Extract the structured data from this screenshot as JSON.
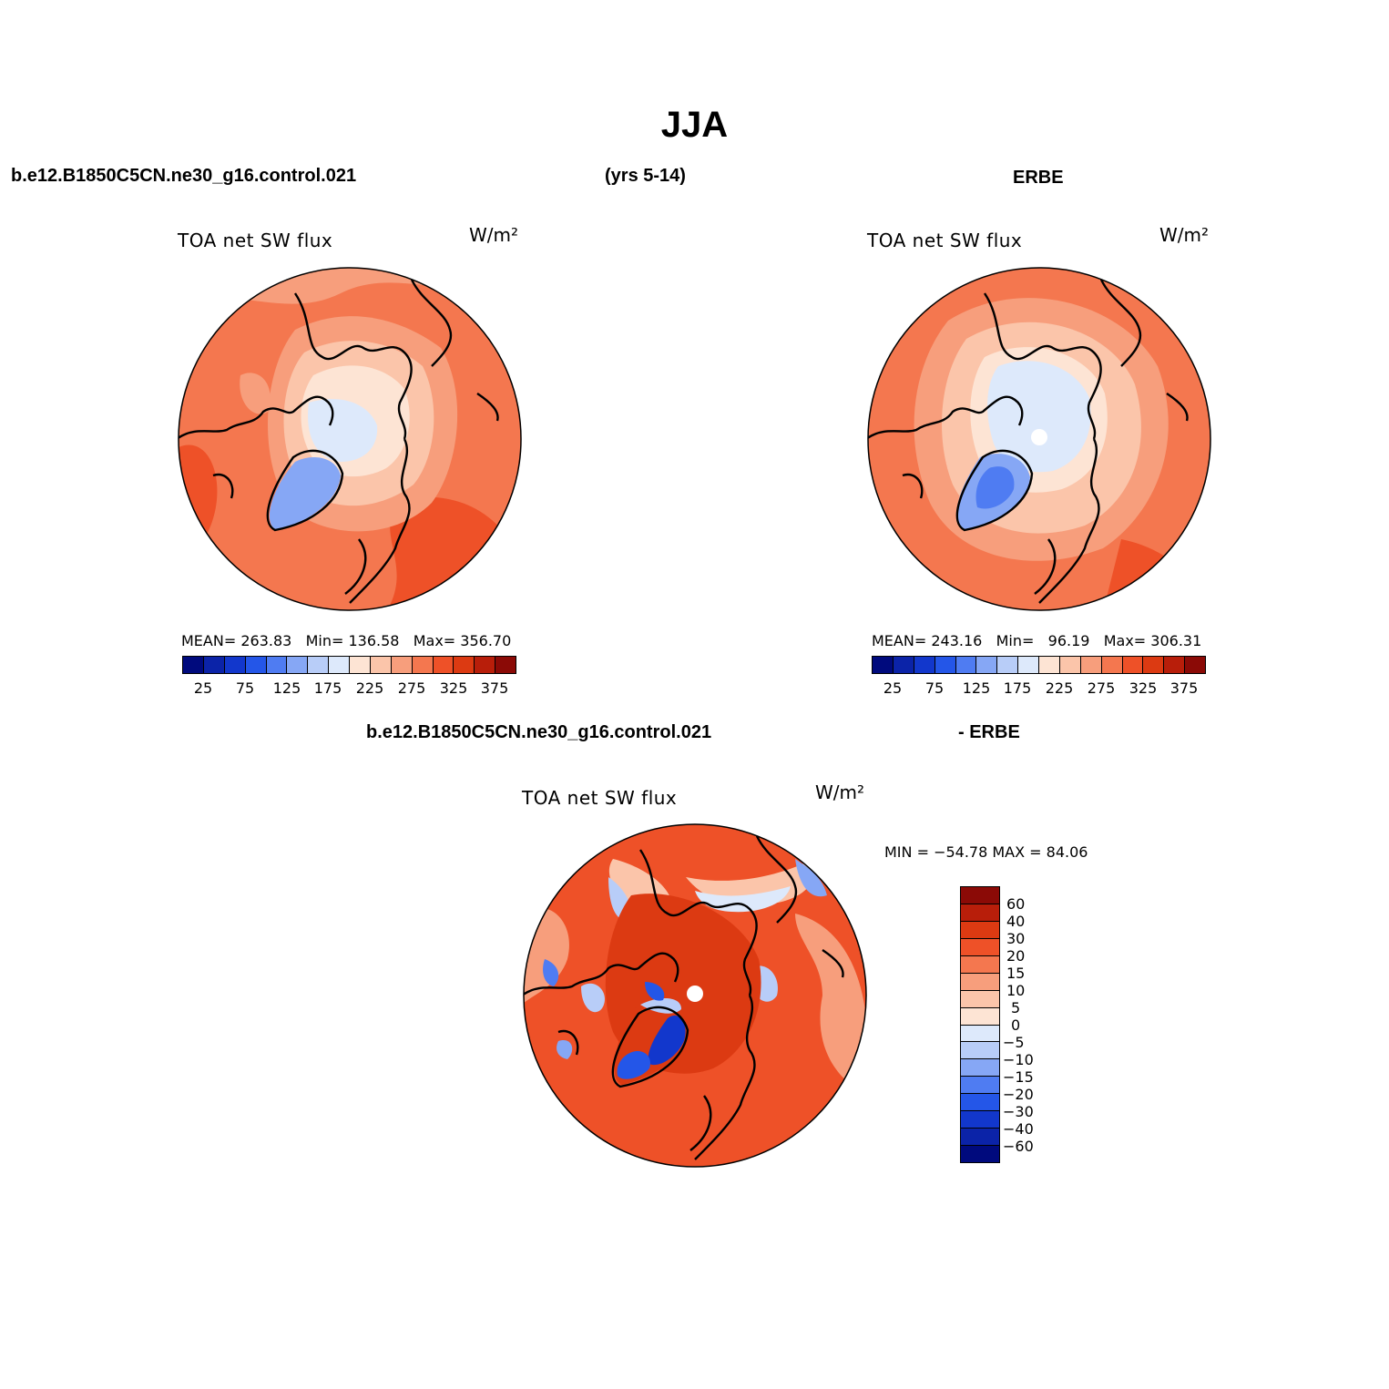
{
  "title": "JJA",
  "header_top": {
    "left": "b.e12.B1850C5CN.ne30_g16.control.021",
    "middle": "(yrs 5-14)",
    "right": "ERBE"
  },
  "header_bottom": {
    "left": "b.e12.B1850C5CN.ne30_g16.control.021",
    "right": "- ERBE"
  },
  "palette_abs": [
    "#000a7d",
    "#0b23a8",
    "#1237cc",
    "#2456e8",
    "#4f7cf2",
    "#86a7f5",
    "#b8cdf8",
    "#dde9fb",
    "#fde4d4",
    "#fbc5aa",
    "#f79e7c",
    "#f4774f",
    "#ee5128",
    "#dc3a12",
    "#b81e0a",
    "#8b0a06"
  ],
  "palette_diff": [
    "#8b0a06",
    "#b81e0a",
    "#dc3a12",
    "#ee5128",
    "#f4774f",
    "#f79e7c",
    "#fbc5aa",
    "#fde4d4",
    "#dde9fb",
    "#b8cdf8",
    "#86a7f5",
    "#4f7cf2",
    "#2456e8",
    "#1237cc",
    "#0b23a8",
    "#000a7d"
  ],
  "panels": {
    "model": {
      "title": "TOA net SW flux",
      "units": "W/m²",
      "stats": {
        "mean_label": "MEAN=",
        "mean": "263.83",
        "min_label": "Min=",
        "min": "136.58",
        "max_label": "Max=",
        "max": "356.70"
      },
      "colorbar_ticks": [
        "25",
        "75",
        "125",
        "175",
        "225",
        "275",
        "325",
        "375"
      ]
    },
    "obs": {
      "title": "TOA net SW flux",
      "units": "W/m²",
      "stats": {
        "mean_label": "MEAN=",
        "mean": "243.16",
        "min_label": "Min=",
        "min": "96.19",
        "max_label": "Max=",
        "max": "306.31"
      },
      "colorbar_ticks": [
        "25",
        "75",
        "125",
        "175",
        "225",
        "275",
        "325",
        "375"
      ]
    },
    "diff": {
      "title": "TOA net SW flux",
      "units": "W/m²",
      "minmax": "MIN = −54.78 MAX =  84.06",
      "colorbar_ticks": [
        "60",
        "40",
        "30",
        "20",
        "15",
        "10",
        "5",
        "0",
        "−5",
        "−10",
        "−15",
        "−20",
        "−30",
        "−40",
        "−60"
      ]
    }
  }
}
